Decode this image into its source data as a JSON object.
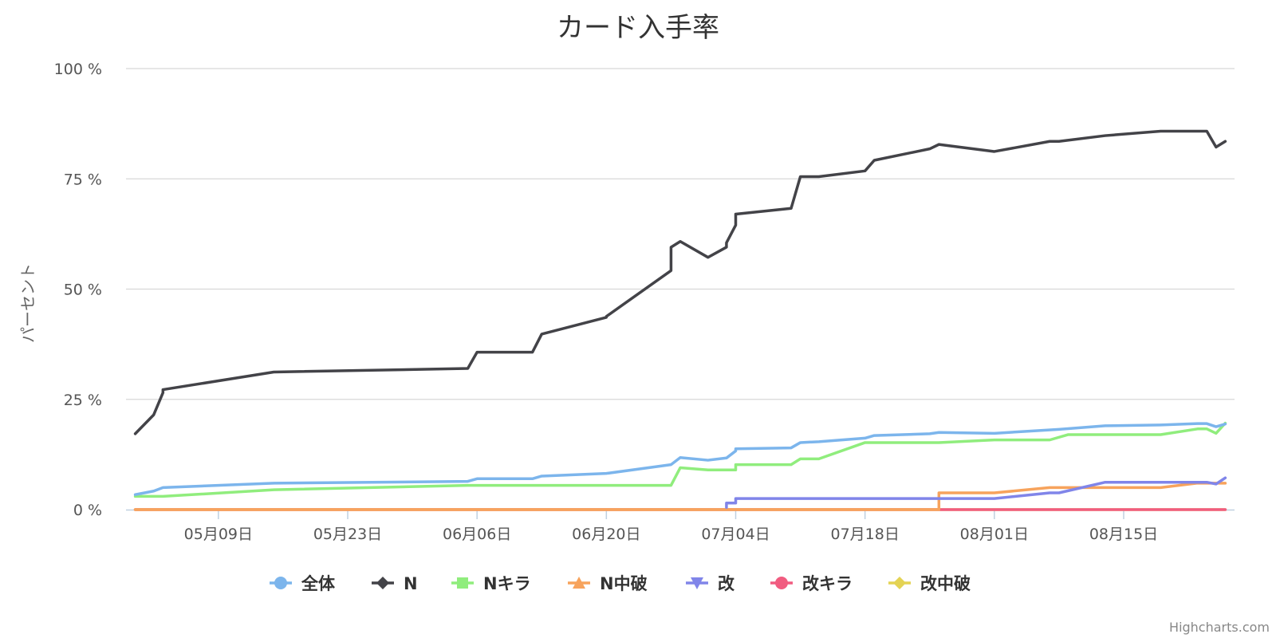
{
  "chart_data": {
    "type": "line",
    "title": "カード入手率",
    "ylabel": "パーセント",
    "xlabel": "",
    "y_tick_labels": [
      "0 %",
      "25 %",
      "50 %",
      "75 %",
      "100 %"
    ],
    "y_ticks": [
      0,
      25,
      50,
      75,
      100
    ],
    "ylim": [
      0,
      100
    ],
    "x_tick_labels": [
      "05月09日",
      "05月23日",
      "06月06日",
      "06月20日",
      "07月04日",
      "07月18日",
      "08月01日",
      "08月15日"
    ],
    "x_ticks": [
      "2015-05-09",
      "2015-05-23",
      "2015-06-06",
      "2015-06-20",
      "2015-07-04",
      "2015-07-18",
      "2015-08-01",
      "2015-08-15"
    ],
    "xlim": [
      "2015-04-29",
      "2015-08-27"
    ],
    "grid": true,
    "legend_position": "bottom-center",
    "credits": "Highcharts.com",
    "series": [
      {
        "name": "全体",
        "color": "#7cb5ec",
        "marker": "circle",
        "points": [
          [
            "2015-04-30",
            3.4
          ],
          [
            "2015-05-01",
            3.8
          ],
          [
            "2015-05-02",
            4.2
          ],
          [
            "2015-05-03",
            5.0
          ],
          [
            "2015-05-15",
            6.0
          ],
          [
            "2015-06-05",
            6.4
          ],
          [
            "2015-06-06",
            7.0
          ],
          [
            "2015-06-12",
            7.0
          ],
          [
            "2015-06-13",
            7.6
          ],
          [
            "2015-06-20",
            8.2
          ],
          [
            "2015-06-27",
            10.2
          ],
          [
            "2015-06-28",
            11.8
          ],
          [
            "2015-07-01",
            11.2
          ],
          [
            "2015-07-03",
            11.7
          ],
          [
            "2015-07-04",
            13.3
          ],
          [
            "2015-07-04",
            13.8
          ],
          [
            "2015-07-10",
            14.0
          ],
          [
            "2015-07-11",
            15.2
          ],
          [
            "2015-07-13",
            15.4
          ],
          [
            "2015-07-18",
            16.2
          ],
          [
            "2015-07-19",
            16.8
          ],
          [
            "2015-07-25",
            17.2
          ],
          [
            "2015-07-26",
            17.5
          ],
          [
            "2015-08-01",
            17.3
          ],
          [
            "2015-08-08",
            18.2
          ],
          [
            "2015-08-13",
            19.0
          ],
          [
            "2015-08-19",
            19.2
          ],
          [
            "2015-08-23",
            19.5
          ],
          [
            "2015-08-24",
            19.5
          ],
          [
            "2015-08-25",
            18.8
          ],
          [
            "2015-08-26",
            19.4
          ]
        ]
      },
      {
        "name": "N",
        "color": "#434348",
        "marker": "diamond",
        "points": [
          [
            "2015-04-30",
            17.2
          ],
          [
            "2015-05-02",
            21.5
          ],
          [
            "2015-05-03",
            26.5
          ],
          [
            "2015-05-03",
            27.2
          ],
          [
            "2015-05-15",
            31.2
          ],
          [
            "2015-06-05",
            32.0
          ],
          [
            "2015-06-06",
            35.7
          ],
          [
            "2015-06-12",
            35.7
          ],
          [
            "2015-06-13",
            39.8
          ],
          [
            "2015-06-20",
            43.6
          ],
          [
            "2015-06-20",
            43.8
          ],
          [
            "2015-06-27",
            54.2
          ],
          [
            "2015-06-27",
            59.5
          ],
          [
            "2015-06-28",
            60.8
          ],
          [
            "2015-07-01",
            57.2
          ],
          [
            "2015-07-03",
            59.5
          ],
          [
            "2015-07-03",
            60.5
          ],
          [
            "2015-07-04",
            64.5
          ],
          [
            "2015-07-04",
            64.8
          ],
          [
            "2015-07-04",
            67.0
          ],
          [
            "2015-07-10",
            68.3
          ],
          [
            "2015-07-11",
            75.5
          ],
          [
            "2015-07-13",
            75.5
          ],
          [
            "2015-07-18",
            76.8
          ],
          [
            "2015-07-19",
            79.2
          ],
          [
            "2015-07-25",
            81.8
          ],
          [
            "2015-07-26",
            82.8
          ],
          [
            "2015-08-01",
            81.2
          ],
          [
            "2015-08-01",
            81.2
          ],
          [
            "2015-08-07",
            83.5
          ],
          [
            "2015-08-08",
            83.5
          ],
          [
            "2015-08-13",
            84.8
          ],
          [
            "2015-08-19",
            85.8
          ],
          [
            "2015-08-24",
            85.8
          ],
          [
            "2015-08-25",
            82.2
          ],
          [
            "2015-08-26",
            83.5
          ]
        ]
      },
      {
        "name": "Nキラ",
        "color": "#90ed7d",
        "marker": "square",
        "points": [
          [
            "2015-04-30",
            3.0
          ],
          [
            "2015-05-03",
            3.0
          ],
          [
            "2015-05-15",
            4.5
          ],
          [
            "2015-06-05",
            5.5
          ],
          [
            "2015-06-27",
            5.5
          ],
          [
            "2015-06-28",
            9.5
          ],
          [
            "2015-07-01",
            9.0
          ],
          [
            "2015-07-04",
            9.0
          ],
          [
            "2015-07-04",
            10.2
          ],
          [
            "2015-07-10",
            10.2
          ],
          [
            "2015-07-11",
            11.5
          ],
          [
            "2015-07-13",
            11.5
          ],
          [
            "2015-07-18",
            15.2
          ],
          [
            "2015-07-26",
            15.2
          ],
          [
            "2015-08-01",
            15.8
          ],
          [
            "2015-08-07",
            15.8
          ],
          [
            "2015-08-09",
            17.0
          ],
          [
            "2015-08-19",
            17.0
          ],
          [
            "2015-08-23",
            18.3
          ],
          [
            "2015-08-24",
            18.3
          ],
          [
            "2015-08-25",
            17.3
          ],
          [
            "2015-08-26",
            19.6
          ]
        ]
      },
      {
        "name": "N中破",
        "color": "#f7a35c",
        "marker": "triangle",
        "points": [
          [
            "2015-04-30",
            0.0
          ],
          [
            "2015-07-26",
            0.0
          ],
          [
            "2015-07-26",
            3.8
          ],
          [
            "2015-08-01",
            3.8
          ],
          [
            "2015-08-07",
            5.0
          ],
          [
            "2015-08-19",
            5.0
          ],
          [
            "2015-08-23",
            6.0
          ],
          [
            "2015-08-26",
            6.0
          ]
        ]
      },
      {
        "name": "改",
        "color": "#8085e9",
        "marker": "triangle-down",
        "points": [
          [
            "2015-07-03",
            0.5
          ],
          [
            "2015-07-03",
            1.5
          ],
          [
            "2015-07-04",
            1.5
          ],
          [
            "2015-07-04",
            2.5
          ],
          [
            "2015-08-01",
            2.5
          ],
          [
            "2015-08-07",
            3.8
          ],
          [
            "2015-08-08",
            3.8
          ],
          [
            "2015-08-13",
            6.2
          ],
          [
            "2015-08-24",
            6.2
          ],
          [
            "2015-08-25",
            5.8
          ],
          [
            "2015-08-26",
            7.2
          ]
        ]
      },
      {
        "name": "改キラ",
        "color": "#f15c80",
        "marker": "circle",
        "points": [
          [
            "2015-04-30",
            0.0
          ],
          [
            "2015-08-26",
            0.0
          ]
        ]
      },
      {
        "name": "改中破",
        "color": "#e4d354",
        "marker": "diamond",
        "points": [
          [
            "2015-04-30",
            0.0
          ],
          [
            "2015-08-26",
            0.0
          ]
        ]
      }
    ]
  }
}
